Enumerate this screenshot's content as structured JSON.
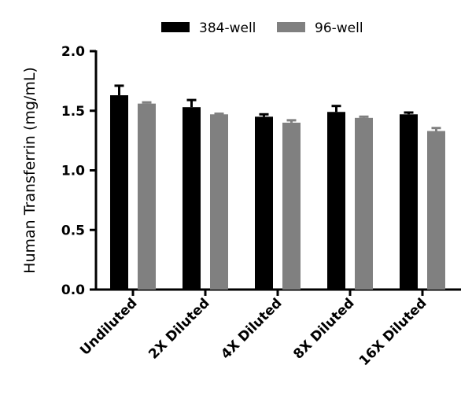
{
  "chart_data": {
    "type": "bar",
    "title": "",
    "xlabel": "",
    "ylabel": "Human Transferrin (mg/mL)",
    "ylim": [
      0,
      2.0
    ],
    "yticks": [
      "0.0",
      "0.5",
      "1.0",
      "1.5",
      "2.0"
    ],
    "ytick_values": [
      0,
      0.5,
      1.0,
      1.5,
      2.0
    ],
    "categories": [
      "Undiluted",
      "2X Diluted",
      "4X Diluted",
      "8X Diluted",
      "16X Diluted"
    ],
    "legend_position": "top",
    "series": [
      {
        "name": "384-well",
        "color": "#000000",
        "values": [
          1.63,
          1.53,
          1.45,
          1.49,
          1.47
        ],
        "error": [
          0.08,
          0.06,
          0.02,
          0.05,
          0.015
        ]
      },
      {
        "name": "96-well",
        "color": "#808080",
        "values": [
          1.56,
          1.47,
          1.4,
          1.44,
          1.33
        ],
        "error": [
          0.01,
          0.005,
          0.02,
          0.01,
          0.025
        ]
      }
    ]
  }
}
